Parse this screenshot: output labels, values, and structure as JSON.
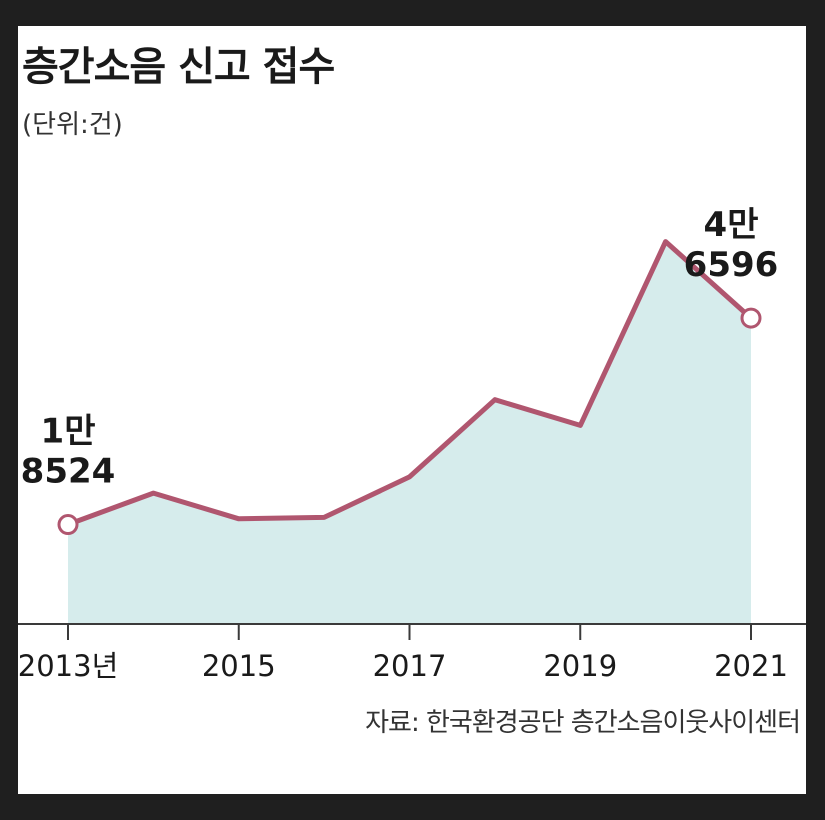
{
  "title": "층간소음 신고 접수",
  "unit_label": "(단위:건)",
  "source": "자료: 한국환경공단 층간소음이웃사이센터",
  "chart_data": {
    "type": "area",
    "title": "층간소음 신고 접수",
    "unit": "(단위:건)",
    "x": [
      2013,
      2014,
      2015,
      2016,
      2017,
      2018,
      2019,
      2020,
      2021
    ],
    "series": [
      {
        "values": [
          18524,
          22800,
          19300,
          19500,
          25000,
          35500,
          32000,
          57000,
          46596
        ]
      }
    ],
    "x_tick_labels": [
      "2013년",
      "2015",
      "2017",
      "2019",
      "2021"
    ],
    "annotations": [
      {
        "x": 2013,
        "line1": "1만",
        "line2": "8524"
      },
      {
        "x": 2021,
        "line1": "4만",
        "line2": "6596"
      }
    ],
    "ylim": [
      5000,
      70000
    ],
    "colors": {
      "line": "#b0566f",
      "fill": "#d6ecec",
      "axis": "#3a3a3a"
    }
  }
}
